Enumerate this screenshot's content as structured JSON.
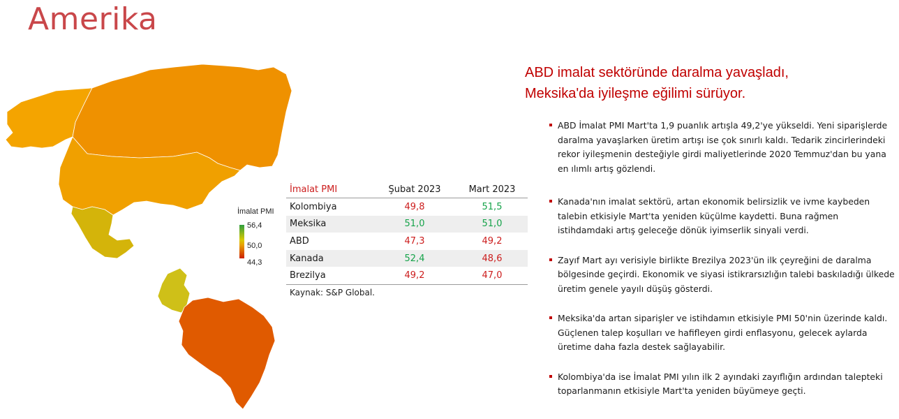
{
  "page": {
    "title": "Amerika"
  },
  "legend": {
    "title": "İmalat PMI",
    "max": "56,4",
    "mid": "50,0",
    "min": "44,3",
    "colors": {
      "high": "#2e9e3f",
      "mid": "#e8a000",
      "low": "#cc2000"
    }
  },
  "table": {
    "headers": [
      "İmalat PMI",
      "Şubat 2023",
      "Mart 2023"
    ],
    "rows": [
      {
        "country": "Kolombiya",
        "feb": "49,8",
        "mar": "51,5",
        "feb_color": "red",
        "mar_color": "green"
      },
      {
        "country": "Meksika",
        "feb": "51,0",
        "mar": "51,0",
        "feb_color": "green",
        "mar_color": "green"
      },
      {
        "country": "ABD",
        "feb": "47,3",
        "mar": "49,2",
        "feb_color": "red",
        "mar_color": "red"
      },
      {
        "country": "Kanada",
        "feb": "52,4",
        "mar": "48,6",
        "feb_color": "green",
        "mar_color": "red"
      },
      {
        "country": "Brezilya",
        "feb": "49,2",
        "mar": "47,0",
        "feb_color": "red",
        "mar_color": "red"
      }
    ],
    "source": "Kaynak: S&P Global."
  },
  "headline": {
    "line1": "ABD imalat sektöründe daralma yavaşladı,",
    "line2": "Meksika'da iyileşme eğilimi sürüyor."
  },
  "bullets": [
    "ABD İmalat PMI Mart'ta 1,9 puanlık artışla 49,2'ye yükseldi. Yeni siparişlerde daralma yavaşlarken üretim artışı ise çok sınırlı kaldı. Tedarik zincirlerindeki rekor iyileşmenin desteğiyle girdi maliyetlerinde 2020 Temmuz'dan bu yana en ılımlı artış gözlendi.",
    "Kanada'nın imalat sektörü, artan ekonomik belirsizlik ve ivme kaybeden talebin etkisiyle Mart'ta yeniden küçülme kaydetti. Buna rağmen istihdamdaki artış geleceğe dönük iyimserlik sinyali verdi.",
    "Zayıf Mart ayı verisiyle birlikte Brezilya 2023'ün ilk çeyreğini de daralma bölgesinde geçirdi. Ekonomik ve siyasi istikrarsızlığın talebi baskıladığı ülkede üretim genele yayılı düşüş gösterdi.",
    "Meksika'da artan siparişler ve istihdamın etkisiyle PMI 50'nin üzerinde kaldı. Güçlenen talep koşulları ve hafifleyen girdi enflasyonu, gelecek aylarda üretime daha fazla destek sağlayabilir.",
    "Kolombiya'da ise İmalat PMI yılın ilk 2 ayındaki zayıflığın ardından talepteki toparlanmanın etkisiyle Mart'ta yeniden büyümeye geçti."
  ],
  "map_colors": {
    "alaska": "#f4a400",
    "canada": "#ef9100",
    "usa": "#f0a000",
    "mexico": "#d4b40a",
    "colombia": "#cfc018",
    "brazil": "#e05a00"
  }
}
